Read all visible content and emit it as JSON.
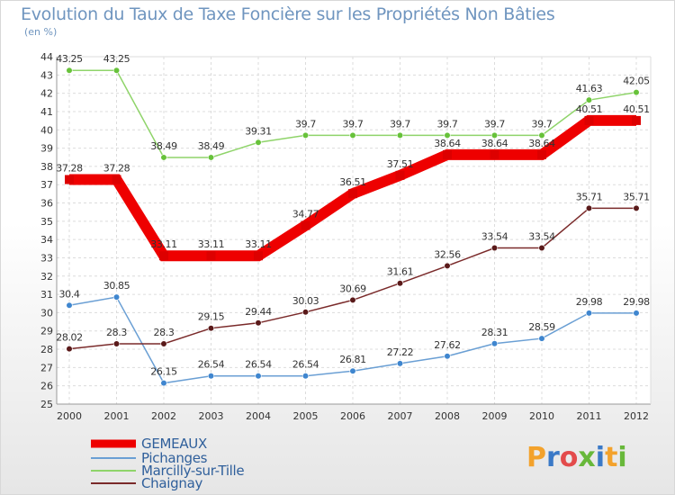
{
  "title": "Evolution du Taux de Taxe Foncière sur les Propriétés Non Bâties",
  "subtitle": "(en %)",
  "logo": {
    "text": "Proxiti",
    "letters": [
      "P",
      "r",
      "o",
      "x",
      "i",
      "t",
      "i"
    ],
    "colors": [
      "#f3a22c",
      "#3a79c7",
      "#e34b4b",
      "#68b83a",
      "#3a79c7",
      "#f3a22c",
      "#68b83a"
    ]
  },
  "chart_data": {
    "type": "line",
    "title": "Evolution du Taux de Taxe Foncière sur les Propriétés Non Bâties",
    "ylabel": "(en %)",
    "xlabel": "",
    "ylim": [
      25,
      44
    ],
    "yticks": [
      25,
      26,
      27,
      28,
      29,
      30,
      31,
      32,
      33,
      34,
      35,
      36,
      37,
      38,
      39,
      40,
      41,
      42,
      43,
      44
    ],
    "categories": [
      "2000",
      "2001",
      "2002",
      "2003",
      "2004",
      "2005",
      "2006",
      "2007",
      "2008",
      "2009",
      "2010",
      "2011",
      "2012"
    ],
    "series": [
      {
        "name": "GEMEAUX",
        "color": "#ee0000",
        "marker": "#dd0000",
        "emphasis": true,
        "values": [
          37.28,
          37.28,
          33.11,
          33.11,
          33.11,
          34.77,
          36.51,
          37.51,
          38.64,
          38.64,
          38.64,
          40.51,
          40.51
        ],
        "labels": [
          "37.28",
          "37.28",
          "33.11",
          "33.11",
          "33.11",
          "34.77",
          "36.51",
          "37.51",
          "38.64",
          "38.64",
          "38.64",
          "40.51",
          "40.51"
        ]
      },
      {
        "name": "Pichanges",
        "color": "#6a9fd4",
        "marker": "#3f86cf",
        "emphasis": false,
        "values": [
          30.4,
          30.85,
          26.15,
          26.54,
          26.54,
          26.54,
          26.81,
          27.22,
          27.62,
          28.31,
          28.59,
          29.98,
          29.98
        ],
        "labels": [
          "30.4",
          "30.85",
          "26.15",
          "26.54",
          "26.54",
          "26.54",
          "26.81",
          "27.22",
          "27.62",
          "28.31",
          "28.59",
          "29.98",
          "29.98"
        ]
      },
      {
        "name": "Marcilly-sur-Tille",
        "color": "#8fd46a",
        "marker": "#67c23a",
        "emphasis": false,
        "values": [
          43.25,
          43.25,
          38.49,
          38.49,
          39.31,
          39.7,
          39.7,
          39.7,
          39.7,
          39.7,
          39.7,
          41.63,
          42.05
        ],
        "labels": [
          "43.25",
          "43.25",
          "38.49",
          "38.49",
          "39.31",
          "39.7",
          "39.7",
          "39.7",
          "39.7",
          "39.7",
          "39.7",
          "41.63",
          "42.05"
        ]
      },
      {
        "name": "Chaignay",
        "color": "#7a2a2a",
        "marker": "#5a1a1a",
        "emphasis": false,
        "values": [
          28.02,
          28.3,
          28.3,
          29.15,
          29.44,
          30.03,
          30.69,
          31.61,
          32.56,
          33.54,
          33.54,
          35.71,
          35.71
        ],
        "labels": [
          "28.02",
          "28.3",
          "28.3",
          "29.15",
          "29.44",
          "30.03",
          "30.69",
          "31.61",
          "32.56",
          "33.54",
          "33.54",
          "35.71",
          "35.71"
        ]
      }
    ],
    "grid": true,
    "legend_position": "bottom-left"
  }
}
